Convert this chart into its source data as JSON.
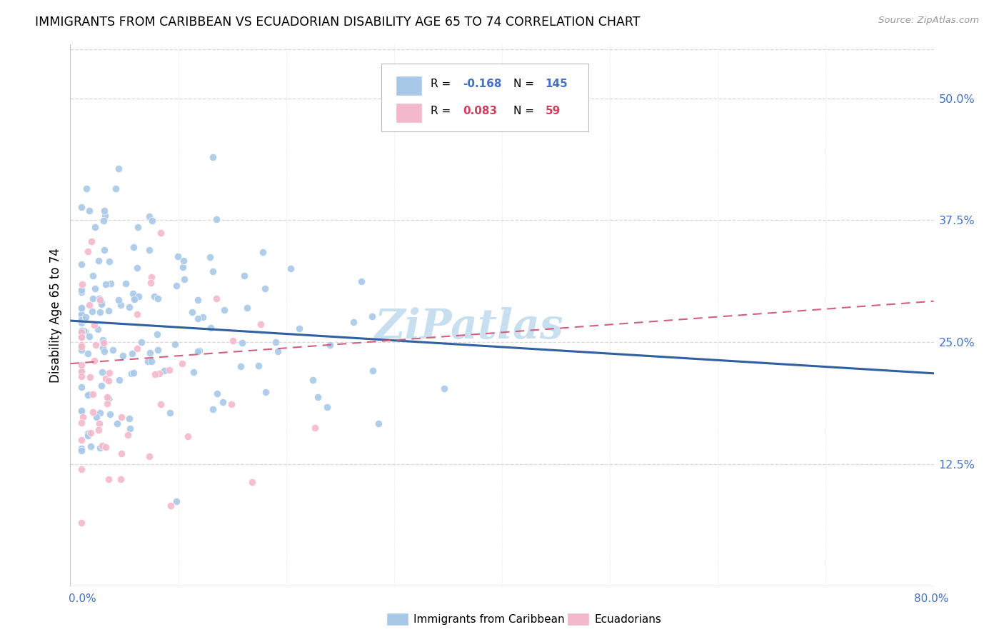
{
  "title": "IMMIGRANTS FROM CARIBBEAN VS ECUADORIAN DISABILITY AGE 65 TO 74 CORRELATION CHART",
  "source": "Source: ZipAtlas.com",
  "ylabel": "Disability Age 65 to 74",
  "ytick_labels": [
    "12.5%",
    "25.0%",
    "37.5%",
    "50.0%"
  ],
  "ytick_values": [
    0.125,
    0.25,
    0.375,
    0.5
  ],
  "xmin": 0.0,
  "xmax": 0.8,
  "ymin": 0.0,
  "ymax": 0.555,
  "legend_label1": "Immigrants from Caribbean",
  "legend_label2": "Ecuadorians",
  "R1": -0.168,
  "N1": 145,
  "R2": 0.083,
  "N2": 59,
  "color_blue": "#a8c8e8",
  "color_pink": "#f4b8cc",
  "color_blue_line": "#3060a0",
  "color_pink_line": "#d06080",
  "color_blue_text": "#4472c4",
  "color_pink_text": "#d04060",
  "watermark_text": "ZiPatlas",
  "watermark_color": "#c8dff0",
  "grid_color": "#d8d8d8",
  "blue_line_y0": 0.272,
  "blue_line_y1": 0.218,
  "pink_line_y0": 0.228,
  "pink_line_y1": 0.292
}
